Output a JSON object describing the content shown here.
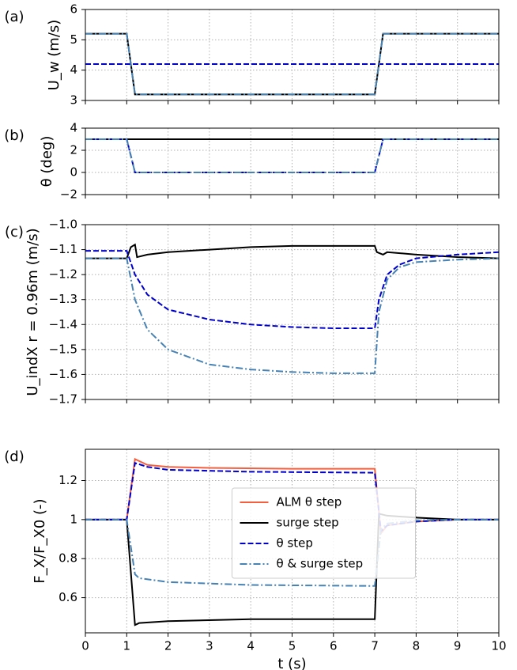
{
  "chart_data": [
    {
      "type": "line",
      "label": "(a)",
      "ylabel": "U_w (m/s)",
      "xlim": [
        0,
        10
      ],
      "ylim": [
        3,
        6
      ],
      "xticks": [
        0,
        1,
        2,
        3,
        4,
        5,
        6,
        7,
        8,
        9,
        10
      ],
      "yticks": [
        3,
        4,
        5,
        6
      ],
      "grid": true,
      "series": [
        {
          "name": "surge step",
          "color": "#000000",
          "dash": "solid",
          "x": [
            0,
            1,
            1.2,
            7,
            7.2,
            10
          ],
          "values": [
            5.2,
            5.2,
            3.2,
            3.2,
            5.2,
            5.2
          ]
        },
        {
          "name": "θ step",
          "color": "#0000cc",
          "dash": "dashed",
          "x": [
            0,
            10
          ],
          "values": [
            4.2,
            4.2
          ]
        },
        {
          "name": "θ & surge step",
          "color": "#4682b4",
          "dash": "dashdot",
          "x": [
            0,
            1,
            1.2,
            7,
            7.2,
            10
          ],
          "values": [
            5.2,
            5.2,
            3.2,
            3.2,
            5.2,
            5.2
          ]
        }
      ]
    },
    {
      "type": "line",
      "label": "(b)",
      "ylabel": "θ (deg)",
      "xlim": [
        0,
        10
      ],
      "ylim": [
        -2,
        4
      ],
      "xticks": [
        0,
        1,
        2,
        3,
        4,
        5,
        6,
        7,
        8,
        9,
        10
      ],
      "yticks": [
        {
          "value": -2,
          "label": "−2"
        },
        0,
        2,
        4
      ],
      "grid": true,
      "series": [
        {
          "name": "surge step",
          "color": "#000000",
          "dash": "solid",
          "x": [
            0,
            10
          ],
          "values": [
            3,
            3
          ]
        },
        {
          "name": "θ step",
          "color": "#0000cc",
          "dash": "dashed",
          "x": [
            0,
            1,
            1.2,
            7,
            7.2,
            10
          ],
          "values": [
            3,
            3,
            0,
            0,
            3,
            3
          ]
        },
        {
          "name": "θ & surge step",
          "color": "#4682b4",
          "dash": "dashdot",
          "x": [
            0,
            1,
            1.2,
            7,
            7.2,
            10
          ],
          "values": [
            3,
            3,
            0,
            0,
            3,
            3
          ]
        }
      ]
    },
    {
      "type": "line",
      "label": "(c)",
      "ylabel": "U_indX r = 0.96m (m/s)",
      "xlim": [
        0,
        10
      ],
      "ylim": [
        -1.7,
        -1.0
      ],
      "xticks": [
        0,
        1,
        2,
        3,
        4,
        5,
        6,
        7,
        8,
        9,
        10
      ],
      "yticks": [
        {
          "value": -1.7,
          "label": "−1.7"
        },
        {
          "value": -1.6,
          "label": "−1.6"
        },
        {
          "value": -1.5,
          "label": "−1.5"
        },
        {
          "value": -1.4,
          "label": "−1.4"
        },
        {
          "value": -1.3,
          "label": "−1.3"
        },
        {
          "value": -1.2,
          "label": "−1.2"
        },
        {
          "value": -1.1,
          "label": "−1.1"
        },
        {
          "value": -1.0,
          "label": "−1.0"
        }
      ],
      "grid": true,
      "series": [
        {
          "name": "surge step",
          "color": "#000000",
          "dash": "solid",
          "x": [
            0,
            1,
            1.1,
            1.2,
            1.25,
            1.5,
            2,
            3,
            4,
            5,
            6,
            7,
            7.05,
            7.2,
            7.3,
            8,
            9,
            10
          ],
          "values": [
            -1.135,
            -1.135,
            -1.09,
            -1.08,
            -1.13,
            -1.12,
            -1.11,
            -1.1,
            -1.09,
            -1.085,
            -1.085,
            -1.085,
            -1.11,
            -1.12,
            -1.11,
            -1.12,
            -1.13,
            -1.135
          ]
        },
        {
          "name": "θ step",
          "color": "#0000cc",
          "dash": "dashed",
          "x": [
            0,
            1,
            1.2,
            1.5,
            2,
            3,
            4,
            5,
            6,
            7,
            7.1,
            7.3,
            7.6,
            8,
            9,
            10
          ],
          "values": [
            -1.105,
            -1.105,
            -1.2,
            -1.28,
            -1.34,
            -1.38,
            -1.4,
            -1.41,
            -1.415,
            -1.415,
            -1.3,
            -1.2,
            -1.16,
            -1.135,
            -1.12,
            -1.11
          ]
        },
        {
          "name": "θ & surge step",
          "color": "#4682b4",
          "dash": "dashdot",
          "x": [
            0,
            1,
            1.2,
            1.5,
            2,
            3,
            4,
            5,
            6,
            7,
            7.1,
            7.3,
            7.6,
            8,
            9,
            10
          ],
          "values": [
            -1.135,
            -1.135,
            -1.3,
            -1.42,
            -1.5,
            -1.56,
            -1.58,
            -1.59,
            -1.595,
            -1.595,
            -1.35,
            -1.22,
            -1.17,
            -1.15,
            -1.14,
            -1.135
          ]
        }
      ]
    },
    {
      "type": "line",
      "label": "(d)",
      "ylabel": "F_X/F_X0 (-)",
      "xlabel": "t (s)",
      "xlim": [
        0,
        10
      ],
      "ylim": [
        0.42,
        1.36
      ],
      "xticks": [
        0,
        1,
        2,
        3,
        4,
        5,
        6,
        7,
        8,
        9,
        10
      ],
      "yticks": [
        0.6,
        0.8,
        1.0,
        1.2
      ],
      "grid": true,
      "legend": "center",
      "series": [
        {
          "name": "ALM θ step",
          "color": "#f4603e",
          "dash": "solid",
          "x": [
            0,
            1,
            1.2,
            1.5,
            2,
            3,
            5,
            7,
            7.15,
            7.3,
            8,
            9,
            10
          ],
          "values": [
            1.0,
            1.0,
            1.31,
            1.28,
            1.27,
            1.265,
            1.26,
            1.26,
            0.93,
            0.97,
            0.99,
            1.0,
            1.0
          ]
        },
        {
          "name": "surge step",
          "color": "#000000",
          "dash": "solid",
          "x": [
            0,
            1,
            1.2,
            1.3,
            2,
            4,
            7,
            7.1,
            7.3,
            8,
            9,
            10
          ],
          "values": [
            1.0,
            1.0,
            0.46,
            0.47,
            0.48,
            0.49,
            0.49,
            1.03,
            1.02,
            1.01,
            1.0,
            1.0
          ]
        },
        {
          "name": "θ step",
          "color": "#0000cc",
          "dash": "dashed",
          "x": [
            0,
            1,
            1.2,
            1.5,
            2,
            4,
            7,
            7.15,
            7.3,
            8,
            9,
            10
          ],
          "values": [
            1.0,
            1.0,
            1.29,
            1.27,
            1.255,
            1.245,
            1.24,
            0.94,
            0.97,
            0.99,
            1.0,
            1.0
          ]
        },
        {
          "name": "θ & surge step",
          "color": "#4682b4",
          "dash": "dashdot",
          "x": [
            0,
            1,
            1.2,
            1.3,
            2,
            4,
            7,
            7.15,
            7.3,
            8,
            9,
            10
          ],
          "values": [
            1.0,
            1.0,
            0.72,
            0.7,
            0.68,
            0.665,
            0.66,
            0.95,
            0.98,
            0.995,
            1.0,
            1.0
          ]
        }
      ]
    }
  ]
}
